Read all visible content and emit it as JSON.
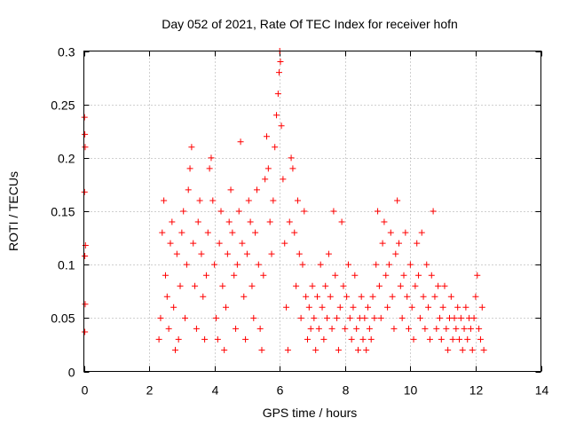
{
  "chart_data": {
    "type": "scatter",
    "title": "Day 052 of 2021, Rate Of TEC Index for receiver hofn",
    "xlabel": "GPS time / hours",
    "ylabel": "ROTI / TECUs",
    "xlim": [
      0,
      14
    ],
    "ylim": [
      0,
      0.3
    ],
    "x_ticks": [
      "0",
      "2",
      "4",
      "6",
      "8",
      "10",
      "12",
      "14"
    ],
    "y_ticks": [
      "0",
      "0.05",
      "0.1",
      "0.15",
      "0.2",
      "0.25",
      "0.3"
    ],
    "grid": true,
    "marker": "plus",
    "color": "#ff0000",
    "series": [
      {
        "points": [
          [
            0.02,
            0.238
          ],
          [
            0.03,
            0.222
          ],
          [
            0.04,
            0.21
          ],
          [
            0.02,
            0.168
          ],
          [
            0.05,
            0.118
          ],
          [
            0.03,
            0.108
          ],
          [
            0.04,
            0.063
          ],
          [
            0.03,
            0.037
          ],
          [
            2.3,
            0.03
          ],
          [
            2.35,
            0.05
          ],
          [
            2.4,
            0.13
          ],
          [
            2.45,
            0.16
          ],
          [
            2.5,
            0.09
          ],
          [
            2.55,
            0.07
          ],
          [
            2.6,
            0.04
          ],
          [
            2.65,
            0.12
          ],
          [
            2.7,
            0.14
          ],
          [
            2.75,
            0.06
          ],
          [
            2.8,
            0.02
          ],
          [
            2.85,
            0.11
          ],
          [
            2.9,
            0.03
          ],
          [
            2.95,
            0.08
          ],
          [
            3.0,
            0.13
          ],
          [
            3.05,
            0.15
          ],
          [
            3.1,
            0.05
          ],
          [
            3.15,
            0.1
          ],
          [
            3.2,
            0.17
          ],
          [
            3.25,
            0.19
          ],
          [
            3.3,
            0.21
          ],
          [
            3.35,
            0.12
          ],
          [
            3.4,
            0.08
          ],
          [
            3.45,
            0.04
          ],
          [
            3.5,
            0.14
          ],
          [
            3.55,
            0.16
          ],
          [
            3.6,
            0.11
          ],
          [
            3.65,
            0.07
          ],
          [
            3.7,
            0.03
          ],
          [
            3.75,
            0.09
          ],
          [
            3.8,
            0.13
          ],
          [
            3.85,
            0.19
          ],
          [
            3.9,
            0.2
          ],
          [
            3.95,
            0.16
          ],
          [
            4.0,
            0.1
          ],
          [
            4.05,
            0.05
          ],
          [
            4.1,
            0.03
          ],
          [
            4.15,
            0.12
          ],
          [
            4.2,
            0.15
          ],
          [
            4.25,
            0.08
          ],
          [
            4.3,
            0.02
          ],
          [
            4.35,
            0.06
          ],
          [
            4.4,
            0.11
          ],
          [
            4.45,
            0.14
          ],
          [
            4.5,
            0.17
          ],
          [
            4.55,
            0.13
          ],
          [
            4.6,
            0.09
          ],
          [
            4.65,
            0.04
          ],
          [
            4.7,
            0.1
          ],
          [
            4.75,
            0.15
          ],
          [
            4.8,
            0.215
          ],
          [
            4.85,
            0.12
          ],
          [
            4.9,
            0.07
          ],
          [
            4.95,
            0.03
          ],
          [
            5.0,
            0.11
          ],
          [
            5.05,
            0.16
          ],
          [
            5.1,
            0.14
          ],
          [
            5.15,
            0.08
          ],
          [
            5.2,
            0.05
          ],
          [
            5.25,
            0.13
          ],
          [
            5.3,
            0.17
          ],
          [
            5.35,
            0.1
          ],
          [
            5.4,
            0.04
          ],
          [
            5.45,
            0.02
          ],
          [
            5.5,
            0.09
          ],
          [
            5.55,
            0.18
          ],
          [
            5.6,
            0.22
          ],
          [
            5.65,
            0.19
          ],
          [
            5.7,
            0.14
          ],
          [
            5.75,
            0.11
          ],
          [
            5.8,
            0.16
          ],
          [
            5.85,
            0.21
          ],
          [
            5.9,
            0.24
          ],
          [
            5.95,
            0.26
          ],
          [
            6.0,
            0.3
          ],
          [
            6.02,
            0.29
          ],
          [
            5.98,
            0.28
          ],
          [
            6.05,
            0.23
          ],
          [
            6.1,
            0.18
          ],
          [
            6.15,
            0.12
          ],
          [
            6.2,
            0.06
          ],
          [
            6.25,
            0.02
          ],
          [
            6.3,
            0.14
          ],
          [
            6.35,
            0.2
          ],
          [
            6.4,
            0.19
          ],
          [
            6.45,
            0.13
          ],
          [
            6.5,
            0.08
          ],
          [
            6.55,
            0.16
          ],
          [
            6.6,
            0.11
          ],
          [
            6.65,
            0.05
          ],
          [
            6.7,
            0.1
          ],
          [
            6.75,
            0.15
          ],
          [
            6.8,
            0.07
          ],
          [
            6.85,
            0.03
          ],
          [
            6.9,
            0.06
          ],
          [
            6.95,
            0.04
          ],
          [
            7.0,
            0.08
          ],
          [
            7.05,
            0.05
          ],
          [
            7.1,
            0.02
          ],
          [
            7.15,
            0.07
          ],
          [
            7.2,
            0.04
          ],
          [
            7.25,
            0.1
          ],
          [
            7.3,
            0.06
          ],
          [
            7.35,
            0.03
          ],
          [
            7.4,
            0.08
          ],
          [
            7.45,
            0.05
          ],
          [
            7.5,
            0.11
          ],
          [
            7.55,
            0.07
          ],
          [
            7.6,
            0.04
          ],
          [
            7.65,
            0.15
          ],
          [
            7.7,
            0.09
          ],
          [
            7.75,
            0.05
          ],
          [
            7.8,
            0.02
          ],
          [
            7.85,
            0.06
          ],
          [
            7.9,
            0.14
          ],
          [
            7.95,
            0.08
          ],
          [
            8.0,
            0.04
          ],
          [
            8.05,
            0.07
          ],
          [
            8.1,
            0.1
          ],
          [
            8.15,
            0.05
          ],
          [
            8.2,
            0.03
          ],
          [
            8.25,
            0.06
          ],
          [
            8.3,
            0.09
          ],
          [
            8.35,
            0.04
          ],
          [
            8.4,
            0.02
          ],
          [
            8.45,
            0.05
          ],
          [
            8.5,
            0.07
          ],
          [
            8.55,
            0.03
          ],
          [
            8.6,
            0.05
          ],
          [
            8.65,
            0.02
          ],
          [
            8.7,
            0.06
          ],
          [
            8.75,
            0.04
          ],
          [
            8.8,
            0.03
          ],
          [
            8.85,
            0.07
          ],
          [
            8.9,
            0.05
          ],
          [
            8.95,
            0.1
          ],
          [
            9.0,
            0.15
          ],
          [
            9.05,
            0.08
          ],
          [
            9.1,
            0.05
          ],
          [
            9.15,
            0.12
          ],
          [
            9.2,
            0.14
          ],
          [
            9.25,
            0.09
          ],
          [
            9.3,
            0.06
          ],
          [
            9.35,
            0.1
          ],
          [
            9.4,
            0.13
          ],
          [
            9.45,
            0.07
          ],
          [
            9.5,
            0.04
          ],
          [
            9.55,
            0.11
          ],
          [
            9.6,
            0.16
          ],
          [
            9.65,
            0.12
          ],
          [
            9.7,
            0.08
          ],
          [
            9.75,
            0.05
          ],
          [
            9.8,
            0.09
          ],
          [
            9.85,
            0.13
          ],
          [
            9.9,
            0.07
          ],
          [
            9.95,
            0.04
          ],
          [
            10.0,
            0.1
          ],
          [
            10.05,
            0.06
          ],
          [
            10.1,
            0.03
          ],
          [
            10.15,
            0.08
          ],
          [
            10.2,
            0.12
          ],
          [
            10.25,
            0.09
          ],
          [
            10.3,
            0.05
          ],
          [
            10.35,
            0.13
          ],
          [
            10.4,
            0.07
          ],
          [
            10.45,
            0.04
          ],
          [
            10.5,
            0.1
          ],
          [
            10.55,
            0.06
          ],
          [
            10.6,
            0.03
          ],
          [
            10.65,
            0.09
          ],
          [
            10.7,
            0.15
          ],
          [
            10.75,
            0.07
          ],
          [
            10.8,
            0.04
          ],
          [
            10.85,
            0.08
          ],
          [
            10.9,
            0.05
          ],
          [
            10.95,
            0.03
          ],
          [
            11.0,
            0.06
          ],
          [
            11.05,
            0.08
          ],
          [
            11.1,
            0.04
          ],
          [
            11.15,
            0.02
          ],
          [
            11.2,
            0.05
          ],
          [
            11.25,
            0.07
          ],
          [
            11.3,
            0.03
          ],
          [
            11.35,
            0.05
          ],
          [
            11.4,
            0.04
          ],
          [
            11.45,
            0.06
          ],
          [
            11.5,
            0.03
          ],
          [
            11.55,
            0.05
          ],
          [
            11.6,
            0.02
          ],
          [
            11.65,
            0.04
          ],
          [
            11.7,
            0.06
          ],
          [
            11.75,
            0.03
          ],
          [
            11.8,
            0.05
          ],
          [
            11.85,
            0.04
          ],
          [
            11.9,
            0.02
          ],
          [
            11.95,
            0.05
          ],
          [
            12.0,
            0.07
          ],
          [
            12.05,
            0.09
          ],
          [
            12.1,
            0.04
          ],
          [
            12.15,
            0.03
          ],
          [
            12.2,
            0.06
          ],
          [
            12.25,
            0.02
          ]
        ]
      }
    ]
  }
}
